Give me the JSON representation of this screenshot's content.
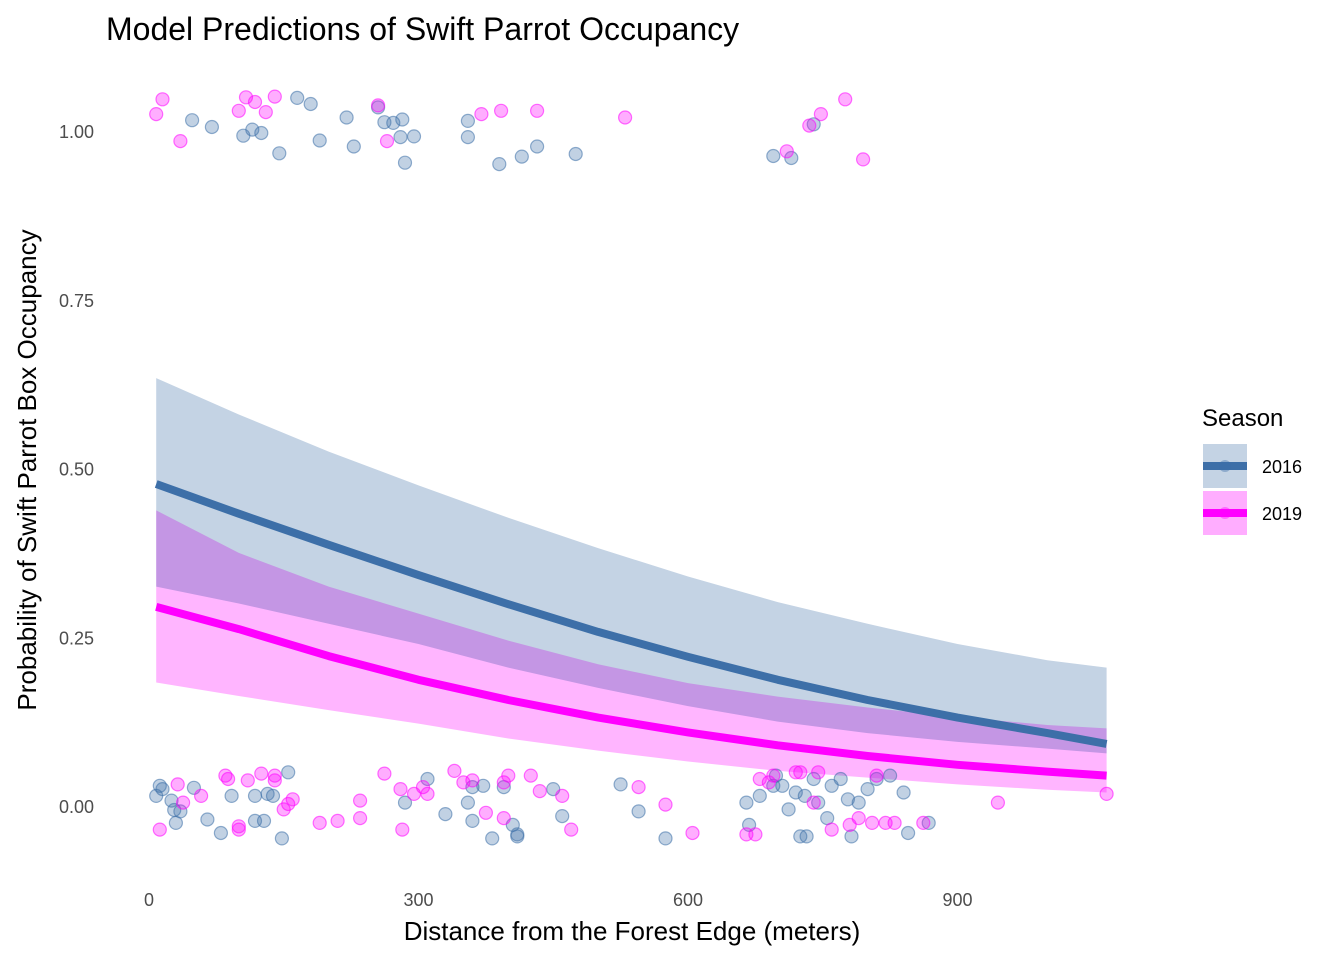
{
  "chart_data": {
    "type": "line",
    "title": "Model Predictions of Swift Parrot  Occupancy",
    "xlabel": "Distance from the Forest Edge (meters)",
    "ylabel": "Probability of Swift Parrot Box Occupancy",
    "xlim": [
      -20,
      1080
    ],
    "ylim": [
      -0.09,
      1.09
    ],
    "x_ticks": [
      0,
      300,
      600,
      900
    ],
    "x_tick_labels": [
      "0",
      "300",
      "600",
      "900"
    ],
    "y_ticks": [
      0,
      0.25,
      0.5,
      0.75,
      1.0
    ],
    "y_tick_labels": [
      "0.00",
      "0.25",
      "0.50",
      "0.75",
      "1.00"
    ],
    "grid": false,
    "legend": {
      "title": "Season",
      "position": "right"
    },
    "series": [
      {
        "name": "2016",
        "color": "#3d6fa8",
        "ribbon_color": "#c4d3e4",
        "x": [
          8,
          100,
          200,
          300,
          400,
          500,
          600,
          700,
          800,
          900,
          1000,
          1066
        ],
        "fit": [
          0.477,
          0.433,
          0.387,
          0.342,
          0.299,
          0.258,
          0.221,
          0.187,
          0.157,
          0.131,
          0.108,
          0.092
        ],
        "lower": [
          0.325,
          0.3,
          0.27,
          0.24,
          0.205,
          0.175,
          0.148,
          0.125,
          0.108,
          0.095,
          0.085,
          0.078
        ],
        "upper": [
          0.634,
          0.58,
          0.525,
          0.475,
          0.427,
          0.382,
          0.34,
          0.302,
          0.27,
          0.24,
          0.216,
          0.205
        ]
      },
      {
        "name": "2019",
        "color": "#ff00ff",
        "ribbon_color": "#ffadff",
        "x": [
          8,
          100,
          200,
          300,
          400,
          500,
          600,
          700,
          800,
          900,
          1000,
          1066
        ],
        "fit": [
          0.295,
          0.262,
          0.222,
          0.187,
          0.157,
          0.131,
          0.109,
          0.09,
          0.074,
          0.061,
          0.051,
          0.045
        ],
        "lower": [
          0.183,
          0.163,
          0.142,
          0.122,
          0.1,
          0.082,
          0.066,
          0.052,
          0.042,
          0.032,
          0.024,
          0.02
        ],
        "upper": [
          0.438,
          0.375,
          0.325,
          0.285,
          0.245,
          0.21,
          0.182,
          0.162,
          0.146,
          0.132,
          0.12,
          0.115
        ]
      }
    ],
    "points": [
      {
        "series": "2016",
        "color": "#3d6fa8",
        "x": [
          48,
          70,
          105,
          115,
          125,
          145,
          165,
          180,
          190,
          220,
          228,
          255,
          262,
          272,
          280,
          282,
          285,
          295,
          355,
          355,
          390,
          415,
          432,
          475,
          695,
          715,
          740,
          12,
          15,
          25,
          35,
          50,
          65,
          80,
          92,
          118,
          132,
          148,
          155,
          285,
          310,
          330,
          355,
          360,
          372,
          382,
          395,
          405,
          410,
          450,
          460,
          525,
          545,
          575,
          665,
          668,
          680,
          695,
          698,
          705,
          712,
          720,
          730,
          732,
          740,
          745,
          755,
          760,
          770,
          778,
          782,
          790,
          800,
          810,
          825,
          840,
          845,
          868,
          8,
          30,
          28,
          118,
          128,
          138,
          360,
          410,
          725
        ],
        "y": [
          1.016,
          1.006,
          0.993,
          1.002,
          0.997,
          0.967,
          1.049,
          1.04,
          0.986,
          1.02,
          0.977,
          1.035,
          1.013,
          1.012,
          0.991,
          1.017,
          0.953,
          0.992,
          0.991,
          1.015,
          0.951,
          0.962,
          0.977,
          0.966,
          0.963,
          0.96,
          1.01,
          0.03,
          0.025,
          0.008,
          -0.008,
          0.027,
          -0.02,
          -0.04,
          0.015,
          -0.022,
          0.018,
          -0.048,
          0.05,
          0.005,
          0.04,
          -0.012,
          0.005,
          -0.022,
          0.03,
          -0.048,
          0.028,
          -0.028,
          -0.042,
          0.025,
          -0.015,
          0.032,
          -0.008,
          -0.048,
          0.005,
          -0.028,
          0.015,
          0.03,
          0.045,
          0.03,
          -0.005,
          0.02,
          0.015,
          -0.045,
          0.04,
          0.005,
          -0.018,
          0.03,
          0.04,
          0.01,
          -0.045,
          0.005,
          0.025,
          0.04,
          0.045,
          0.02,
          -0.04,
          -0.025,
          0.015,
          -0.025,
          -0.006,
          0.015,
          -0.022,
          0.015,
          0.028,
          -0.045,
          -0.045
        ]
      },
      {
        "series": "2019",
        "color": "#ff00ff",
        "x": [
          8,
          15,
          35,
          100,
          108,
          118,
          130,
          140,
          255,
          265,
          370,
          392,
          432,
          530,
          710,
          735,
          748,
          775,
          795,
          12,
          32,
          38,
          58,
          85,
          100,
          110,
          125,
          140,
          150,
          160,
          190,
          210,
          235,
          262,
          282,
          295,
          305,
          340,
          350,
          360,
          375,
          395,
          400,
          435,
          460,
          470,
          545,
          575,
          605,
          680,
          695,
          720,
          740,
          745,
          760,
          780,
          790,
          805,
          820,
          830,
          862,
          945,
          1066,
          88,
          100,
          140,
          155,
          280,
          310,
          675,
          690,
          725,
          810,
          235,
          395,
          425,
          665
        ],
        "y": [
          1.025,
          1.047,
          0.985,
          1.03,
          1.05,
          1.043,
          1.028,
          1.051,
          1.038,
          0.985,
          1.025,
          1.03,
          1.03,
          1.02,
          0.97,
          1.008,
          1.025,
          1.047,
          0.958,
          -0.035,
          0.032,
          0.005,
          0.015,
          0.045,
          -0.035,
          0.038,
          0.048,
          0.045,
          -0.005,
          0.01,
          -0.025,
          -0.022,
          0.008,
          0.048,
          -0.035,
          0.018,
          0.028,
          0.052,
          0.035,
          0.038,
          -0.01,
          0.035,
          0.045,
          0.022,
          0.015,
          -0.035,
          0.028,
          0.002,
          -0.04,
          0.04,
          0.045,
          0.05,
          0.005,
          0.05,
          -0.035,
          -0.028,
          -0.018,
          -0.025,
          -0.025,
          -0.025,
          -0.025,
          0.005,
          0.018,
          0.04,
          -0.03,
          0.038,
          0.003,
          0.025,
          0.018,
          -0.042,
          0.035,
          0.05,
          0.045,
          -0.018,
          -0.018,
          0.045,
          -0.042
        ]
      }
    ]
  }
}
